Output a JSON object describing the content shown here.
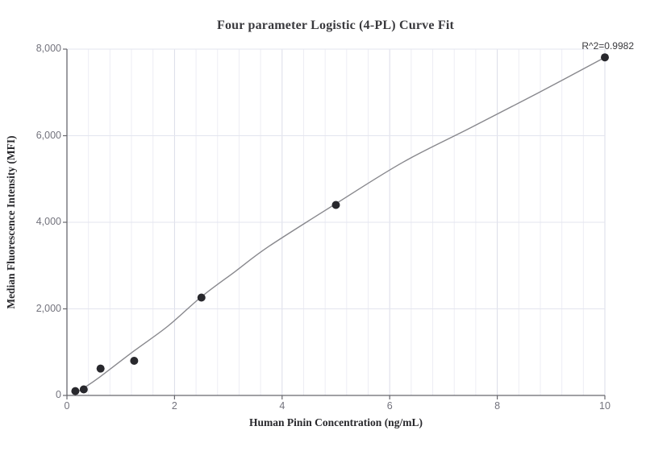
{
  "chart_data": {
    "type": "scatter",
    "title": "Four parameter Logistic (4-PL) Curve Fit",
    "xlabel": "Human Pinin Concentration (ng/mL)",
    "ylabel": "Median Fluorescence Intensity (MFI)",
    "annotation": "R^2=0.9982",
    "xlim": [
      0,
      10
    ],
    "ylim": [
      0,
      8000
    ],
    "x_ticks": {
      "values": [
        0,
        2,
        4,
        6,
        8,
        10
      ],
      "labels": [
        "0",
        "2",
        "4",
        "6",
        "8",
        "10"
      ]
    },
    "y_ticks": {
      "values": [
        0,
        2000,
        4000,
        6000,
        8000
      ],
      "labels": [
        "0",
        "2,000",
        "4,000",
        "6,000",
        "8,000"
      ]
    },
    "grid": {
      "on": true,
      "vertical_minor_step": 0.4,
      "vertical_major_step": 2,
      "horizontal_step": 2000
    },
    "legend": "none",
    "series": [
      {
        "name": "standard-points",
        "type": "scatter",
        "x": [
          0.156,
          0.3125,
          0.625,
          1.25,
          2.5,
          5,
          10
        ],
        "y": [
          100,
          140,
          620,
          800,
          2260,
          4400,
          7810
        ]
      },
      {
        "name": "4pl-fit-curve",
        "type": "line",
        "x": [
          0.156,
          0.3125,
          0.625,
          1.25,
          1.875,
          2.5,
          3.125,
          3.75,
          5,
          6.25,
          7.5,
          8.75,
          10
        ],
        "y": [
          55,
          170,
          440,
          1030,
          1600,
          2280,
          2860,
          3440,
          4430,
          5390,
          6180,
          6980,
          7810
        ]
      }
    ],
    "colors": {
      "background": "#ffffff",
      "point": "#28282d",
      "curve": "#88888d",
      "axis": "#68686e",
      "tick_text": "#73737d",
      "title_text": "#3a3a3e",
      "grid_minor": "#ededf4",
      "grid_major": "#dbdde8",
      "grid_horizontal": "#e3e5ef"
    }
  }
}
